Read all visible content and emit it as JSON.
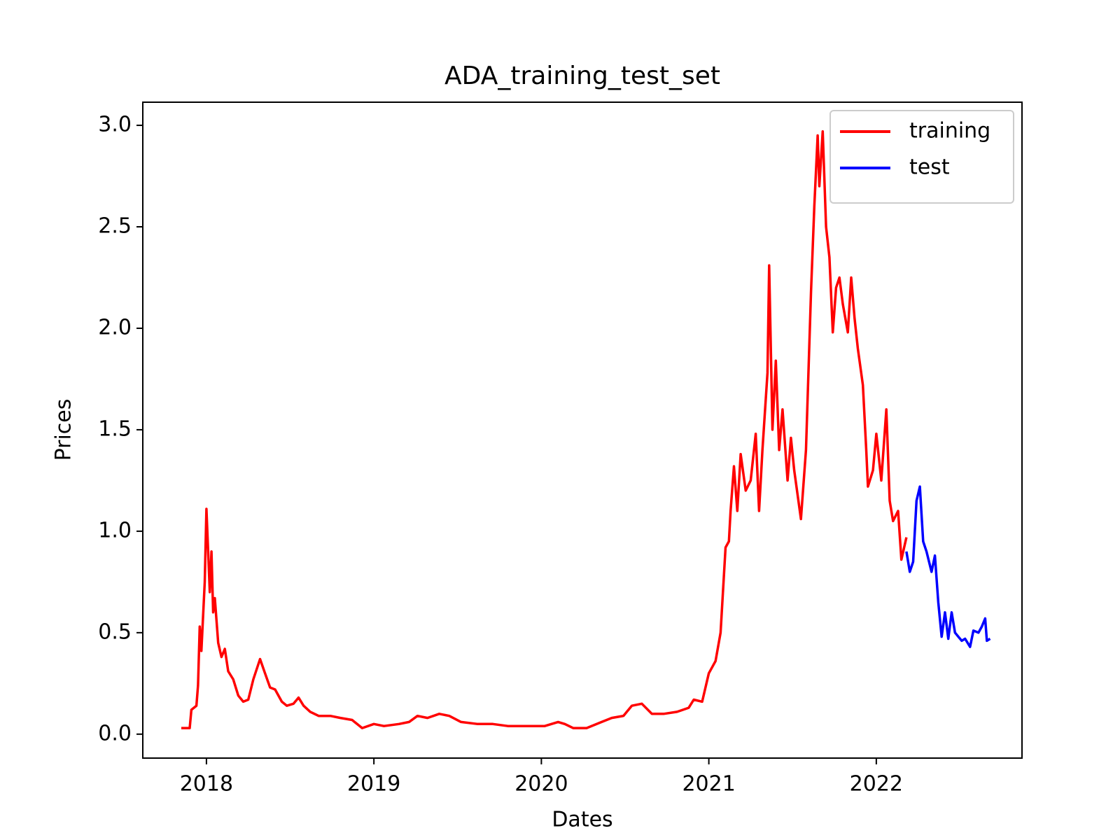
{
  "chart_data": {
    "type": "line",
    "title": "ADA_training_test_set",
    "x_label": "Dates",
    "y_label": "Prices",
    "xlim": [
      2017.62,
      2022.87
    ],
    "xticks": [
      2018,
      2019,
      2020,
      2021,
      2022
    ],
    "ylim": [
      -0.118,
      3.114
    ],
    "yticks": [
      {
        "value": 0,
        "label": "0.0"
      },
      {
        "value": 0.5,
        "label": "0.5"
      },
      {
        "value": 1,
        "label": "1.0"
      },
      {
        "value": 1.5,
        "label": "1.5"
      },
      {
        "value": 2,
        "label": "2.0"
      },
      {
        "value": 2.5,
        "label": "2.5"
      },
      {
        "value": 3,
        "label": "3.0"
      }
    ],
    "grid": false,
    "legend": "upper right",
    "series": [
      {
        "name": "training",
        "color": "#ff0000",
        "x": [
          2017.85,
          2017.9,
          2017.91,
          2017.94,
          2017.95,
          2017.96,
          2017.97,
          2017.99,
          2018.0,
          2018.02,
          2018.03,
          2018.04,
          2018.05,
          2018.07,
          2018.09,
          2018.11,
          2018.13,
          2018.16,
          2018.19,
          2018.22,
          2018.25,
          2018.28,
          2018.32,
          2018.35,
          2018.38,
          2018.41,
          2018.45,
          2018.48,
          2018.52,
          2018.55,
          2018.58,
          2018.62,
          2018.67,
          2018.74,
          2018.8,
          2018.87,
          2018.93,
          2019.0,
          2019.06,
          2019.15,
          2019.21,
          2019.26,
          2019.32,
          2019.39,
          2019.45,
          2019.52,
          2019.62,
          2019.71,
          2019.8,
          2019.93,
          2020.02,
          2020.1,
          2020.14,
          2020.19,
          2020.27,
          2020.36,
          2020.42,
          2020.49,
          2020.54,
          2020.6,
          2020.66,
          2020.73,
          2020.81,
          2020.88,
          2020.91,
          2020.96,
          2021.0,
          2021.04,
          2021.07,
          2021.1,
          2021.12,
          2021.13,
          2021.15,
          2021.17,
          2021.19,
          2021.22,
          2021.25,
          2021.28,
          2021.3,
          2021.32,
          2021.35,
          2021.36,
          2021.38,
          2021.4,
          2021.42,
          2021.44,
          2021.47,
          2021.49,
          2021.51,
          2021.55,
          2021.58,
          2021.61,
          2021.63,
          2021.65,
          2021.66,
          2021.68,
          2021.7,
          2021.72,
          2021.74,
          2021.76,
          2021.78,
          2021.8,
          2021.83,
          2021.85,
          2021.87,
          2021.89,
          2021.92,
          2021.94,
          2021.95,
          2021.98,
          2022.0,
          2022.03,
          2022.06,
          2022.08,
          2022.1,
          2022.13,
          2022.15,
          2022.18
        ],
        "values": [
          0.03,
          0.03,
          0.12,
          0.14,
          0.24,
          0.53,
          0.41,
          0.75,
          1.11,
          0.7,
          0.9,
          0.6,
          0.67,
          0.45,
          0.38,
          0.42,
          0.31,
          0.27,
          0.19,
          0.16,
          0.17,
          0.27,
          0.37,
          0.3,
          0.23,
          0.22,
          0.16,
          0.14,
          0.15,
          0.18,
          0.14,
          0.11,
          0.09,
          0.09,
          0.08,
          0.07,
          0.03,
          0.05,
          0.04,
          0.05,
          0.06,
          0.09,
          0.08,
          0.1,
          0.09,
          0.06,
          0.05,
          0.05,
          0.04,
          0.04,
          0.04,
          0.06,
          0.05,
          0.03,
          0.03,
          0.06,
          0.08,
          0.09,
          0.14,
          0.15,
          0.1,
          0.1,
          0.11,
          0.13,
          0.17,
          0.16,
          0.3,
          0.36,
          0.5,
          0.92,
          0.95,
          1.1,
          1.32,
          1.1,
          1.38,
          1.2,
          1.25,
          1.48,
          1.1,
          1.4,
          1.78,
          2.31,
          1.5,
          1.84,
          1.4,
          1.6,
          1.25,
          1.46,
          1.3,
          1.06,
          1.4,
          2.18,
          2.6,
          2.95,
          2.7,
          2.97,
          2.5,
          2.35,
          1.98,
          2.2,
          2.25,
          2.12,
          1.98,
          2.25,
          2.05,
          1.9,
          1.72,
          1.4,
          1.22,
          1.3,
          1.48,
          1.25,
          1.6,
          1.15,
          1.05,
          1.1,
          0.86,
          0.97
        ]
      },
      {
        "name": "test",
        "color": "#0000ff",
        "x": [
          2022.18,
          2022.2,
          2022.22,
          2022.24,
          2022.26,
          2022.28,
          2022.3,
          2022.33,
          2022.35,
          2022.37,
          2022.39,
          2022.41,
          2022.43,
          2022.45,
          2022.47,
          2022.49,
          2022.51,
          2022.53,
          2022.56,
          2022.58,
          2022.61,
          2022.63,
          2022.65,
          2022.66,
          2022.68
        ],
        "values": [
          0.9,
          0.8,
          0.85,
          1.15,
          1.22,
          0.95,
          0.9,
          0.8,
          0.88,
          0.65,
          0.48,
          0.6,
          0.47,
          0.6,
          0.5,
          0.48,
          0.46,
          0.47,
          0.43,
          0.51,
          0.5,
          0.53,
          0.57,
          0.46,
          0.47
        ]
      }
    ]
  }
}
